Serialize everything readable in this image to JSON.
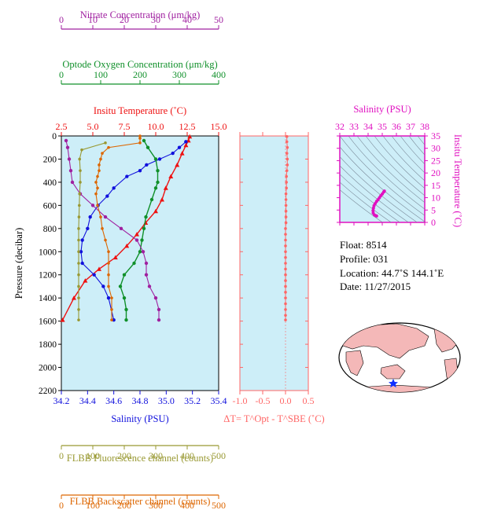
{
  "colors": {
    "nitrate": "#a020a0",
    "oxygen": "#10902a",
    "temperature": "#ee1111",
    "salinity": "#1010dd",
    "fluorescence": "#999933",
    "backscatter": "#dd6600",
    "delta": "#ff6666",
    "ts": "#e010c0",
    "panel_bg": "#cdeef8"
  },
  "info": {
    "float": "Float:  8514",
    "profile": "Profile:  031",
    "location": "Location:  44.7˚S  144.1˚E",
    "date": "Date:  11/27/2015"
  },
  "chart_data": [
    {
      "type": "line",
      "name": "main-profile-panel",
      "ylabel": "Pressure (decibar)",
      "ylim": [
        2200,
        0
      ],
      "yticks": [
        0,
        200,
        400,
        600,
        800,
        1000,
        1200,
        1400,
        1600,
        1800,
        2000,
        2200
      ],
      "axes": [
        {
          "key": "nitrate",
          "title": "Nitrate Concentration (μm/kg)",
          "range": [
            0,
            50
          ],
          "ticks": [
            0,
            10,
            20,
            30,
            40,
            50
          ]
        },
        {
          "key": "oxygen",
          "title": "Optode Oxygen Concentration (μm/kg)",
          "range": [
            0,
            400
          ],
          "ticks": [
            0,
            100,
            200,
            300,
            400
          ]
        },
        {
          "key": "temperature",
          "title": "Insitu Temperature (˚C)",
          "range": [
            2.5,
            15.0
          ],
          "ticks": [
            "2.5",
            "5.0",
            "7.5",
            "10.0",
            "12.5",
            "15.0"
          ]
        },
        {
          "key": "salinity",
          "title": "Salinity (PSU)",
          "range": [
            34.2,
            35.4
          ],
          "ticks": [
            "34.2",
            "34.4",
            "34.6",
            "34.8",
            "35.0",
            "35.2",
            "35.4"
          ]
        },
        {
          "key": "fluorescence",
          "title": "FLBB Fluorescence channel (counts)",
          "range": [
            0,
            500
          ],
          "ticks": [
            0,
            100,
            200,
            300,
            400,
            500
          ]
        },
        {
          "key": "backscatter",
          "title": "FLBB Backscatter channel (counts)",
          "range": [
            0,
            500
          ],
          "ticks": [
            0,
            100,
            200,
            300,
            400,
            500
          ]
        }
      ],
      "series": [
        {
          "key": "temperature",
          "values": [
            [
              12.7,
              5
            ],
            [
              12.6,
              40
            ],
            [
              12.4,
              80
            ],
            [
              12.1,
              150
            ],
            [
              11.7,
              250
            ],
            [
              11.2,
              350
            ],
            [
              10.8,
              450
            ],
            [
              10.5,
              550
            ],
            [
              10.0,
              650
            ],
            [
              9.2,
              750
            ],
            [
              8.5,
              850
            ],
            [
              7.7,
              950
            ],
            [
              6.8,
              1050
            ],
            [
              5.5,
              1150
            ],
            [
              4.4,
              1250
            ],
            [
              3.5,
              1400
            ],
            [
              2.6,
              1590
            ]
          ]
        },
        {
          "key": "salinity",
          "values": [
            [
              35.15,
              50
            ],
            [
              35.1,
              100
            ],
            [
              35.05,
              150
            ],
            [
              34.95,
              200
            ],
            [
              34.85,
              250
            ],
            [
              34.8,
              300
            ],
            [
              34.7,
              350
            ],
            [
              34.6,
              450
            ],
            [
              34.55,
              520
            ],
            [
              34.48,
              600
            ],
            [
              34.42,
              700
            ],
            [
              34.4,
              800
            ],
            [
              34.36,
              900
            ],
            [
              34.35,
              1000
            ],
            [
              34.36,
              1100
            ],
            [
              34.45,
              1200
            ],
            [
              34.52,
              1300
            ],
            [
              34.56,
              1400
            ],
            [
              34.6,
              1590
            ]
          ]
        },
        {
          "key": "oxygen",
          "values": [
            [
              210,
              40
            ],
            [
              220,
              100
            ],
            [
              240,
              200
            ],
            [
              245,
              300
            ],
            [
              245,
              400
            ],
            [
              240,
              450
            ],
            [
              230,
              550
            ],
            [
              215,
              700
            ],
            [
              210,
              800
            ],
            [
              205,
              900
            ],
            [
              200,
              1000
            ],
            [
              185,
              1100
            ],
            [
              160,
              1200
            ],
            [
              150,
              1300
            ],
            [
              160,
              1400
            ],
            [
              165,
              1500
            ],
            [
              165,
              1590
            ]
          ]
        },
        {
          "key": "nitrate",
          "values": [
            [
              1.5,
              40
            ],
            [
              2,
              100
            ],
            [
              2.5,
              200
            ],
            [
              3,
              300
            ],
            [
              3.5,
              400
            ],
            [
              6,
              500
            ],
            [
              10,
              600
            ],
            [
              14,
              700
            ],
            [
              19,
              800
            ],
            [
              24,
              900
            ],
            [
              26,
              1000
            ],
            [
              27,
              1100
            ],
            [
              27,
              1200
            ],
            [
              28,
              1300
            ],
            [
              30,
              1400
            ],
            [
              31,
              1500
            ],
            [
              31,
              1590
            ]
          ]
        },
        {
          "key": "fluorescence",
          "values": [
            [
              140,
              60
            ],
            [
              65,
              120
            ],
            [
              58,
              200
            ],
            [
              60,
              300
            ],
            [
              60,
              400
            ],
            [
              58,
              500
            ],
            [
              57,
              600
            ],
            [
              56,
              700
            ],
            [
              55,
              800
            ],
            [
              55,
              900
            ],
            [
              55,
              1000
            ],
            [
              55,
              1100
            ],
            [
              55,
              1200
            ],
            [
              55,
              1300
            ],
            [
              55,
              1400
            ],
            [
              55,
              1500
            ],
            [
              55,
              1590
            ]
          ]
        },
        {
          "key": "backscatter",
          "values": [
            [
              250,
              0
            ],
            [
              250,
              20
            ],
            [
              250,
              60
            ],
            [
              150,
              100
            ],
            [
              130,
              150
            ],
            [
              125,
              200
            ],
            [
              120,
              250
            ],
            [
              120,
              300
            ],
            [
              115,
              350
            ],
            [
              110,
              400
            ],
            [
              115,
              450
            ],
            [
              110,
              500
            ],
            [
              115,
              600
            ],
            [
              125,
              700
            ],
            [
              130,
              800
            ],
            [
              140,
              900
            ],
            [
              150,
              1000
            ],
            [
              150,
              1100
            ],
            [
              150,
              1200
            ],
            [
              150,
              1300
            ],
            [
              160,
              1400
            ],
            [
              160,
              1500
            ],
            [
              160,
              1590
            ]
          ]
        }
      ]
    },
    {
      "type": "line",
      "name": "delta-t-panel",
      "xlabel": "ΔT= T^Opt - T^SBE (˚C)",
      "xlim": [
        -1.0,
        0.5
      ],
      "xticks": [
        "-1.0",
        "-0.5",
        "0.0",
        "0.5"
      ],
      "ylim": [
        2200,
        0
      ],
      "series": [
        {
          "key": "delta",
          "values": [
            [
              0.03,
              5
            ],
            [
              0.03,
              50
            ],
            [
              0.04,
              100
            ],
            [
              0.03,
              150
            ],
            [
              0.04,
              200
            ],
            [
              0.04,
              250
            ],
            [
              0.03,
              300
            ],
            [
              0.02,
              350
            ],
            [
              0.02,
              400
            ],
            [
              0.02,
              450
            ],
            [
              0.01,
              500
            ],
            [
              0.01,
              550
            ],
            [
              0.01,
              600
            ],
            [
              0.01,
              650
            ],
            [
              0.01,
              700
            ],
            [
              0.01,
              750
            ],
            [
              0.0,
              800
            ],
            [
              0.0,
              850
            ],
            [
              0.0,
              900
            ],
            [
              0.0,
              950
            ],
            [
              0.0,
              1000
            ],
            [
              0.0,
              1050
            ],
            [
              0.0,
              1100
            ],
            [
              0.0,
              1150
            ],
            [
              0.0,
              1200
            ],
            [
              0.0,
              1250
            ],
            [
              0.0,
              1300
            ],
            [
              0.0,
              1350
            ],
            [
              0.0,
              1400
            ],
            [
              0.0,
              1450
            ],
            [
              0.0,
              1500
            ],
            [
              0.0,
              1550
            ],
            [
              0.0,
              1590
            ]
          ]
        }
      ]
    },
    {
      "type": "line",
      "name": "ts-diagram",
      "xlabel": "Salinity (PSU)",
      "ylabel": "Insitu Temperature (˚C)",
      "xlim": [
        32,
        38
      ],
      "ylim": [
        0,
        35
      ],
      "xticks": [
        "32",
        "33",
        "34",
        "35",
        "36",
        "37",
        "38"
      ],
      "yticks": [
        "0",
        "5",
        "10",
        "15",
        "20",
        "25",
        "30",
        "35"
      ],
      "series": [
        {
          "key": "ts",
          "values": [
            [
              35.15,
              12.7
            ],
            [
              35.1,
              12.3
            ],
            [
              35.0,
              11.5
            ],
            [
              34.9,
              10.8
            ],
            [
              34.8,
              10.0
            ],
            [
              34.7,
              9.2
            ],
            [
              34.6,
              8.5
            ],
            [
              34.5,
              7.6
            ],
            [
              34.42,
              6.8
            ],
            [
              34.38,
              5.8
            ],
            [
              34.35,
              4.8
            ],
            [
              34.36,
              3.8
            ],
            [
              34.45,
              3.0
            ],
            [
              34.55,
              2.7
            ],
            [
              34.6,
              2.6
            ]
          ]
        }
      ]
    }
  ]
}
